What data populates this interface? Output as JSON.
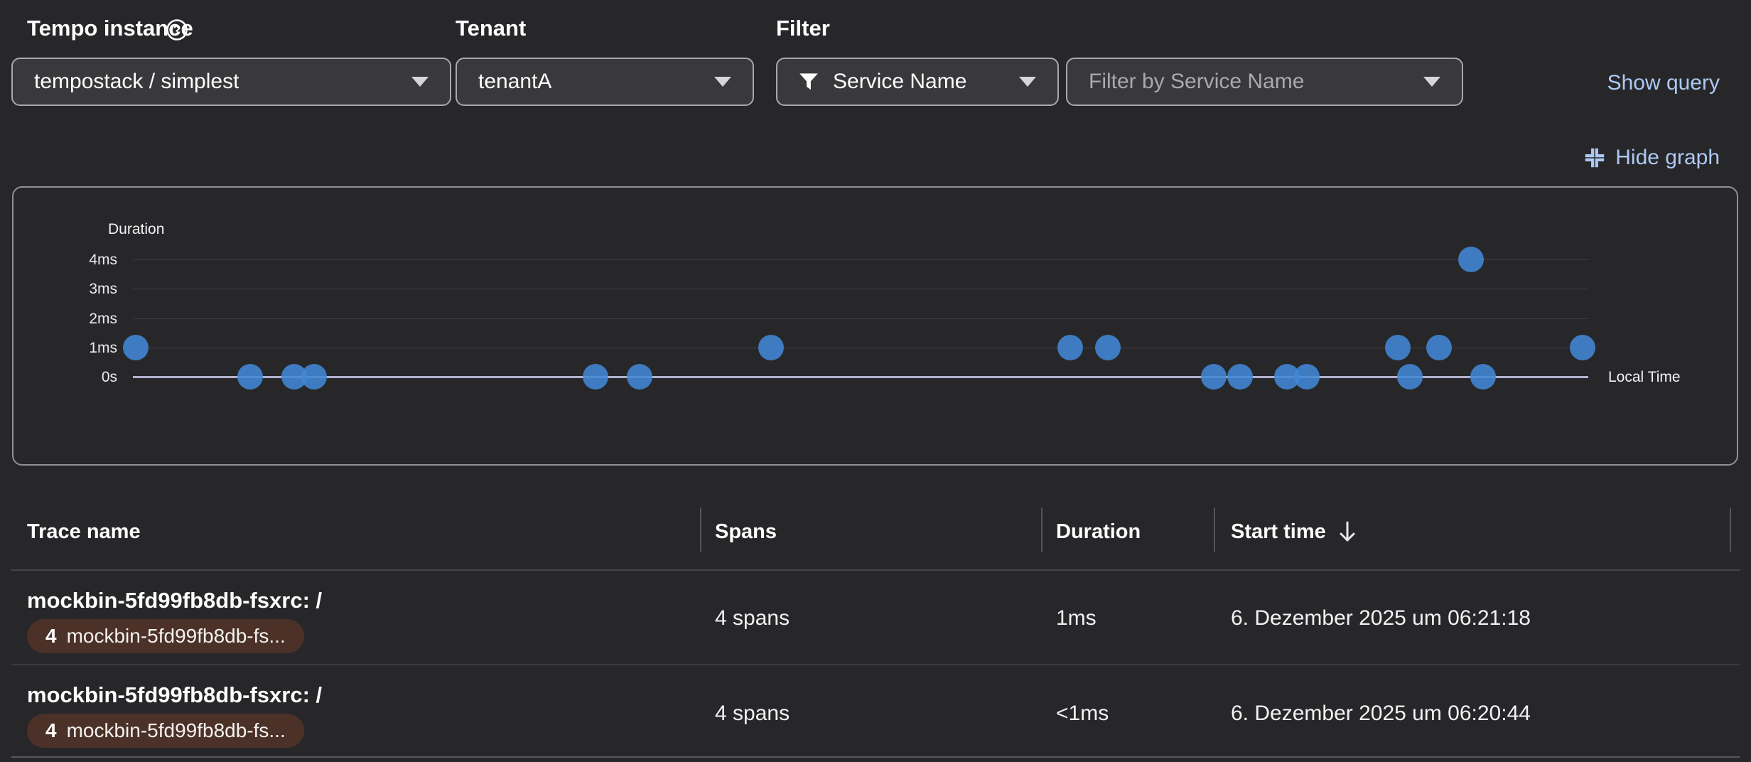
{
  "colors": {
    "background": "#27272a",
    "link": "#adc9f3",
    "point": "#4287d6",
    "badge_background": "#4b3127"
  },
  "toolbar": {
    "tempo_instance_label": "Tempo instance",
    "tempo_instance_value": "tempostack / simplest",
    "tenant_label": "Tenant",
    "tenant_value": "tenantA",
    "filter_label": "Filter",
    "filter_attribute_value": "Service Name",
    "filter_placeholder": "Filter by Service Name",
    "show_query_label": "Show query",
    "hide_graph_label": "Hide graph"
  },
  "chart_data": {
    "type": "scatter",
    "title": "",
    "ylabel": "Duration",
    "xlabel": "Local Time",
    "grid": true,
    "legend": "none",
    "x_domain": [
      "06:13:03",
      "06:21:20"
    ],
    "y_domain_ms": [
      0,
      4
    ],
    "x_ticks": [
      "06:14",
      "06:15",
      "06:16",
      "06:17",
      "06:18",
      "06:19",
      "06:20",
      "06:21"
    ],
    "y_ticks": [
      {
        "label": "4ms",
        "value_ms": 4
      },
      {
        "label": "3ms",
        "value_ms": 3
      },
      {
        "label": "2ms",
        "value_ms": 2
      },
      {
        "label": "1ms",
        "value_ms": 1
      },
      {
        "label": "0s",
        "value_ms": 0
      }
    ],
    "points": [
      {
        "time": "06:13:04",
        "duration_ms": 1
      },
      {
        "time": "06:13:43",
        "duration_ms": 0
      },
      {
        "time": "06:13:58",
        "duration_ms": 0
      },
      {
        "time": "06:14:05",
        "duration_ms": 0
      },
      {
        "time": "06:15:41",
        "duration_ms": 0
      },
      {
        "time": "06:15:56",
        "duration_ms": 0
      },
      {
        "time": "06:16:41",
        "duration_ms": 1
      },
      {
        "time": "06:18:23",
        "duration_ms": 1
      },
      {
        "time": "06:18:36",
        "duration_ms": 1
      },
      {
        "time": "06:19:12",
        "duration_ms": 0
      },
      {
        "time": "06:19:21",
        "duration_ms": 0
      },
      {
        "time": "06:19:37",
        "duration_ms": 0
      },
      {
        "time": "06:19:44",
        "duration_ms": 0
      },
      {
        "time": "06:20:15",
        "duration_ms": 1
      },
      {
        "time": "06:20:19",
        "duration_ms": 0
      },
      {
        "time": "06:20:29",
        "duration_ms": 1
      },
      {
        "time": "06:20:40",
        "duration_ms": 4
      },
      {
        "time": "06:20:44",
        "duration_ms": 0
      },
      {
        "time": "06:21:18",
        "duration_ms": 1
      }
    ]
  },
  "table": {
    "columns": [
      "Trace name",
      "Spans",
      "Duration",
      "Start time"
    ],
    "sorted_column": "Start time",
    "sort_direction": "descending",
    "rows": [
      {
        "trace_name": "mockbin-5fd99fb8db-fsxrc: /",
        "badge_count": "4",
        "badge_label": "mockbin-5fd99fb8db-fs...",
        "spans": "4 spans",
        "duration": "1ms",
        "start_time": "6. Dezember 2025 um 06:21:18"
      },
      {
        "trace_name": "mockbin-5fd99fb8db-fsxrc: /",
        "badge_count": "4",
        "badge_label": "mockbin-5fd99fb8db-fs...",
        "spans": "4 spans",
        "duration": "<1ms",
        "start_time": "6. Dezember 2025 um 06:20:44"
      }
    ]
  }
}
